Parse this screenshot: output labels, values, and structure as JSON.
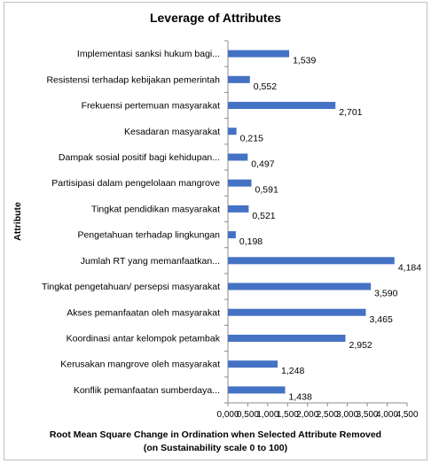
{
  "chart_data": {
    "type": "bar",
    "orientation": "horizontal",
    "title": "Leverage of Attributes",
    "ylabel": "Attribute",
    "xlabel": "Root Mean Square Change in Ordination when Selected Attribute Removed",
    "xlabel_line2": "(on Sustainability scale 0 to 100)",
    "categories": [
      "Implementasi sanksi hukum bagi...",
      "Resistensi terhadap kebijakan pemerintah",
      "Frekuensi pertemuan masyarakat",
      "Kesadaran masyarakat",
      "Dampak sosial positif bagi kehidupan...",
      "Partisipasi dalam pengelolaan mangrove",
      "Tingkat pendidikan masyarakat",
      "Pengetahuan terhadap lingkungan",
      "Jumlah RT yang memanfaatkan...",
      "Tingkat pengetahuan/ persepsi masyarakat",
      "Akses pemanfaatan oleh masyarakat",
      "Koordinasi antar kelompok petambak",
      "Kerusakan mangrove oleh masyarakat",
      "Konflik pemanfaatan sumberdaya..."
    ],
    "values": [
      1.539,
      0.552,
      2.701,
      0.215,
      0.497,
      0.591,
      0.521,
      0.198,
      4.184,
      3.59,
      3.465,
      2.952,
      1.248,
      1.438
    ],
    "data_labels": [
      "1,539",
      "0,552",
      "2,701",
      "0,215",
      "0,497",
      "0,591",
      "0,521",
      "0,198",
      "4,184",
      "3,590",
      "3,465",
      "2,952",
      "1,248",
      "1,438"
    ],
    "xlim": [
      0,
      4.5
    ],
    "xticks": [
      "0,000",
      "0,500",
      "1,000",
      "1,500",
      "2,000",
      "2,500",
      "3,000",
      "3,500",
      "4,000",
      "4,500"
    ],
    "bar_color": "#4472C4",
    "grid": false,
    "legend": "none"
  }
}
